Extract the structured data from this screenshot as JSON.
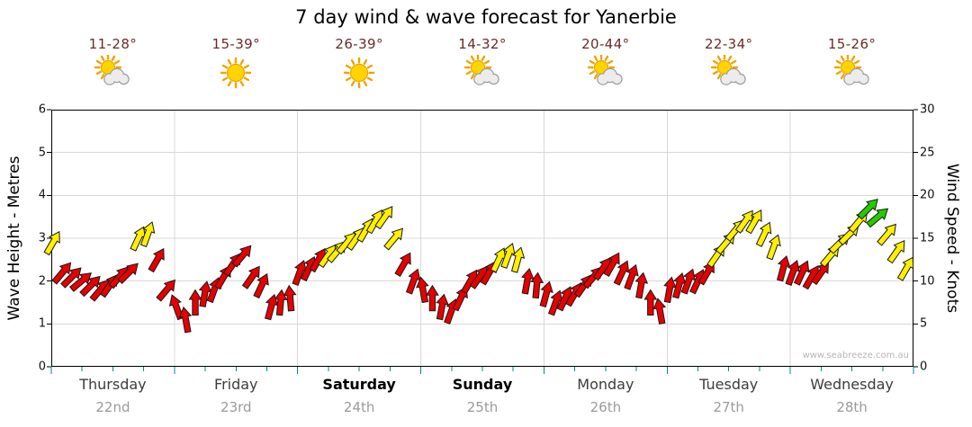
{
  "title": "7 day wind & wave forecast for Yanerbie",
  "watermark": "www.seabreeze.com.au",
  "axes": {
    "left_label": "Wave Height - Metres",
    "right_label": "Wind Speed - Knots",
    "wave_ticks": [
      0,
      1,
      2,
      3,
      4,
      5,
      6
    ],
    "knot_ticks": [
      0,
      5,
      10,
      15,
      20,
      25,
      30
    ],
    "wave_range": [
      0,
      6
    ],
    "knots_range": [
      0,
      30
    ]
  },
  "days": [
    {
      "name": "Thursday",
      "date": "22nd",
      "temp": "11-28°",
      "icon": "partly-cloudy",
      "weekend": false
    },
    {
      "name": "Friday",
      "date": "23rd",
      "temp": "15-39°",
      "icon": "sunny",
      "weekend": false
    },
    {
      "name": "Saturday",
      "date": "24th",
      "temp": "26-39°",
      "icon": "sunny",
      "weekend": true
    },
    {
      "name": "Sunday",
      "date": "25th",
      "temp": "14-32°",
      "icon": "partly-cloudy",
      "weekend": true
    },
    {
      "name": "Monday",
      "date": "26th",
      "temp": "20-44°",
      "icon": "partly-cloudy",
      "weekend": false
    },
    {
      "name": "Tuesday",
      "date": "27th",
      "temp": "22-34°",
      "icon": "partly-cloudy",
      "weekend": false
    },
    {
      "name": "Wednesday",
      "date": "28th",
      "temp": "15-26°",
      "icon": "partly-cloudy",
      "weekend": false
    }
  ],
  "chart_data": {
    "type": "scatter",
    "subtype": "wind-direction-arrows",
    "title": "7 day wind & wave forecast for Yanerbie",
    "x_categories": [
      "Thursday 22nd",
      "Friday 23rd",
      "Saturday 24th",
      "Sunday 25th",
      "Monday 26th",
      "Tuesday 27th",
      "Wednesday 28th"
    ],
    "ylabel_left": "Wave Height - Metres",
    "ylabel_right": "Wind Speed - Knots",
    "ylim_knots": [
      0,
      30
    ],
    "ylim_metres": [
      0,
      6
    ],
    "grid": true,
    "legend": false,
    "colors": {
      "r": "#e60000",
      "y": "#fff000",
      "g": "#22cc00"
    },
    "grid_color": "#d8d8d8",
    "tick_color": "#008b8b",
    "point_format": [
      "x_fraction_of_week",
      "wind_speed_knots",
      "color_key",
      "arrow_rotation_deg"
    ],
    "points": [
      [
        0.002,
        14.5,
        "y",
        30
      ],
      [
        0.013,
        11,
        "r",
        40
      ],
      [
        0.024,
        10.5,
        "r",
        45
      ],
      [
        0.035,
        10,
        "r",
        50
      ],
      [
        0.046,
        9.5,
        "r",
        45
      ],
      [
        0.057,
        9,
        "r",
        40
      ],
      [
        0.068,
        9.5,
        "r",
        35
      ],
      [
        0.079,
        10.5,
        "r",
        40
      ],
      [
        0.09,
        11,
        "r",
        45
      ],
      [
        0.101,
        15,
        "y",
        25
      ],
      [
        0.112,
        15.5,
        "y",
        20
      ],
      [
        0.123,
        12.5,
        "r",
        30
      ],
      [
        0.134,
        9,
        "r",
        40
      ],
      [
        0.145,
        7,
        "r",
        -20
      ],
      [
        0.156,
        5.5,
        "r",
        -10
      ],
      [
        0.167,
        7.5,
        "r",
        0
      ],
      [
        0.178,
        8.5,
        "r",
        10
      ],
      [
        0.189,
        9,
        "r",
        20
      ],
      [
        0.2,
        10.5,
        "r",
        30
      ],
      [
        0.211,
        12,
        "r",
        35
      ],
      [
        0.222,
        13,
        "r",
        40
      ],
      [
        0.233,
        10.5,
        "r",
        35
      ],
      [
        0.244,
        9.5,
        "r",
        25
      ],
      [
        0.255,
        7,
        "r",
        15
      ],
      [
        0.266,
        7.5,
        "r",
        5
      ],
      [
        0.277,
        8,
        "r",
        -5
      ],
      [
        0.288,
        11,
        "r",
        20
      ],
      [
        0.299,
        11.5,
        "r",
        25
      ],
      [
        0.31,
        12.5,
        "r",
        30
      ],
      [
        0.321,
        13,
        "y",
        35
      ],
      [
        0.332,
        13.5,
        "y",
        40
      ],
      [
        0.343,
        14.5,
        "y",
        40
      ],
      [
        0.354,
        15,
        "y",
        35
      ],
      [
        0.365,
        16,
        "y",
        30
      ],
      [
        0.376,
        17,
        "y",
        30
      ],
      [
        0.387,
        17.5,
        "y",
        35
      ],
      [
        0.398,
        15,
        "y",
        40
      ],
      [
        0.409,
        12,
        "r",
        30
      ],
      [
        0.42,
        10,
        "r",
        20
      ],
      [
        0.431,
        9,
        "r",
        -10
      ],
      [
        0.442,
        8,
        "r",
        0
      ],
      [
        0.453,
        7,
        "r",
        10
      ],
      [
        0.464,
        6.5,
        "r",
        20
      ],
      [
        0.475,
        8,
        "r",
        25
      ],
      [
        0.486,
        10,
        "r",
        30
      ],
      [
        0.497,
        10.5,
        "r",
        35
      ],
      [
        0.508,
        11,
        "r",
        30
      ],
      [
        0.519,
        12.5,
        "y",
        25
      ],
      [
        0.53,
        13,
        "y",
        20
      ],
      [
        0.541,
        12.5,
        "y",
        15
      ],
      [
        0.552,
        10,
        "r",
        10
      ],
      [
        0.563,
        9.5,
        "r",
        5
      ],
      [
        0.574,
        8.5,
        "r",
        15
      ],
      [
        0.585,
        7.5,
        "r",
        20
      ],
      [
        0.596,
        8,
        "r",
        25
      ],
      [
        0.607,
        8.5,
        "r",
        30
      ],
      [
        0.618,
        9.5,
        "r",
        35
      ],
      [
        0.629,
        10.5,
        "r",
        40
      ],
      [
        0.64,
        11.5,
        "r",
        35
      ],
      [
        0.651,
        12,
        "r",
        30
      ],
      [
        0.662,
        11,
        "r",
        25
      ],
      [
        0.673,
        10.5,
        "r",
        20
      ],
      [
        0.684,
        9.5,
        "r",
        10
      ],
      [
        0.695,
        7.5,
        "r",
        0
      ],
      [
        0.706,
        6.5,
        "r",
        -10
      ],
      [
        0.717,
        9,
        "r",
        10
      ],
      [
        0.728,
        9.5,
        "r",
        15
      ],
      [
        0.739,
        10,
        "r",
        20
      ],
      [
        0.75,
        10,
        "r",
        25
      ],
      [
        0.761,
        11,
        "r",
        30
      ],
      [
        0.772,
        13,
        "y",
        35
      ],
      [
        0.783,
        14.5,
        "y",
        40
      ],
      [
        0.794,
        16,
        "y",
        40
      ],
      [
        0.805,
        17,
        "y",
        35
      ],
      [
        0.816,
        17,
        "y",
        30
      ],
      [
        0.827,
        15.5,
        "y",
        25
      ],
      [
        0.838,
        14,
        "y",
        20
      ],
      [
        0.849,
        11.5,
        "r",
        15
      ],
      [
        0.86,
        11,
        "r",
        20
      ],
      [
        0.871,
        11,
        "r",
        25
      ],
      [
        0.882,
        10.5,
        "r",
        30
      ],
      [
        0.893,
        11,
        "r",
        35
      ],
      [
        0.904,
        13,
        "y",
        40
      ],
      [
        0.915,
        14.5,
        "y",
        45
      ],
      [
        0.926,
        15.5,
        "y",
        45
      ],
      [
        0.937,
        17,
        "y",
        40
      ],
      [
        0.948,
        18.5,
        "g",
        45
      ],
      [
        0.959,
        17.5,
        "g",
        50
      ],
      [
        0.97,
        15.5,
        "y",
        40
      ],
      [
        0.981,
        13.5,
        "y",
        35
      ],
      [
        0.992,
        11.5,
        "y",
        30
      ]
    ]
  }
}
